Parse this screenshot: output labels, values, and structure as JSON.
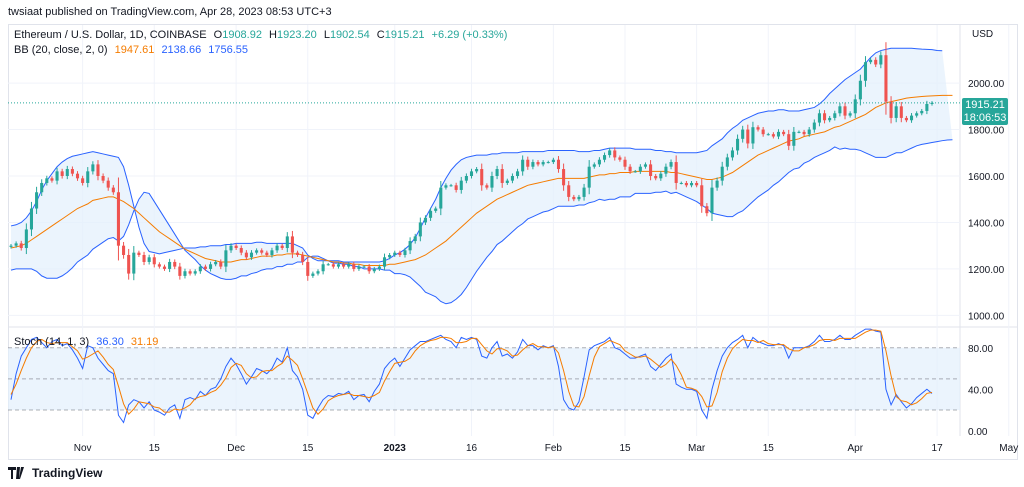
{
  "attribution": "twsiaat published on TradingView.com, Apr 28, 2023 08:53 UTC+3",
  "brand": "TradingView",
  "colors": {
    "up": "#26a69a",
    "down": "#ef5350",
    "bb_basis": "#f57c00",
    "bb_band": "#2962ff",
    "bb_fill": "#e3f0fc",
    "stoch_k": "#2962ff",
    "stoch_d": "#f57c00",
    "grid": "#f0f3fa",
    "text": "#131722"
  },
  "legend": {
    "symbol": "Ethereum / U.S. Dollar, 1D, COINBASE",
    "o_label": "O",
    "o": "1908.92",
    "h_label": "H",
    "h": "1923.20",
    "l_label": "L",
    "l": "1902.54",
    "c_label": "C",
    "c": "1915.21",
    "change": "+6.29 (+0.33%)",
    "bb_label": "BB (20, close, 2, 0)",
    "bb_basis": "1947.61",
    "bb_upper": "2138.66",
    "bb_lower": "1756.55",
    "stoch_label": "Stoch (14, 1, 3)",
    "stoch_k": "36.30",
    "stoch_d": "31.19"
  },
  "price_tag": {
    "price": "1915.21",
    "countdown": "18:06:53"
  },
  "chart_data": [
    {
      "type": "candlestick",
      "title": "Ethereum / U.S. Dollar, 1D, COINBASE",
      "currency_label": "USD",
      "ylim": [
        950,
        2250
      ],
      "y_ticks": [
        "1000.00",
        "1200.00",
        "1400.00",
        "1600.00",
        "1800.00",
        "2000.00"
      ],
      "x_tick_labels": [
        "Nov",
        "15",
        "Dec",
        "15",
        "2023",
        "16",
        "Feb",
        "15",
        "Mar",
        "15",
        "Apr",
        "17",
        "May"
      ],
      "x_tick_dates": [
        "2022-11-01",
        "2022-11-15",
        "2022-12-01",
        "2022-12-15",
        "2023-01-01",
        "2023-01-16",
        "2023-02-01",
        "2023-02-15",
        "2023-03-01",
        "2023-03-15",
        "2023-04-01",
        "2023-04-17",
        "2023-05-01"
      ],
      "start_date": "2022-10-18",
      "closes": [
        1300,
        1310,
        1290,
        1370,
        1460,
        1530,
        1570,
        1590,
        1580,
        1620,
        1600,
        1630,
        1610,
        1590,
        1570,
        1620,
        1650,
        1600,
        1580,
        1550,
        1530,
        1300,
        1260,
        1180,
        1270,
        1260,
        1230,
        1250,
        1220,
        1210,
        1200,
        1230,
        1210,
        1170,
        1190,
        1180,
        1190,
        1210,
        1200,
        1220,
        1230,
        1210,
        1280,
        1300,
        1290,
        1270,
        1250,
        1270,
        1280,
        1270,
        1260,
        1280,
        1300,
        1290,
        1340,
        1270,
        1260,
        1230,
        1170,
        1180,
        1190,
        1220,
        1220,
        1210,
        1220,
        1210,
        1220,
        1200,
        1210,
        1210,
        1190,
        1200,
        1210,
        1250,
        1260,
        1270,
        1260,
        1280,
        1320,
        1340,
        1400,
        1420,
        1450,
        1460,
        1550,
        1560,
        1560,
        1540,
        1580,
        1600,
        1620,
        1630,
        1560,
        1550,
        1600,
        1630,
        1570,
        1580,
        1600,
        1620,
        1670,
        1640,
        1660,
        1650,
        1660,
        1660,
        1670,
        1630,
        1560,
        1510,
        1500,
        1510,
        1550,
        1640,
        1650,
        1670,
        1690,
        1710,
        1680,
        1670,
        1640,
        1620,
        1620,
        1640,
        1650,
        1600,
        1590,
        1610,
        1640,
        1660,
        1570,
        1570,
        1560,
        1570,
        1560,
        1470,
        1440,
        1550,
        1580,
        1640,
        1680,
        1710,
        1760,
        1800,
        1740,
        1810,
        1800,
        1780,
        1780,
        1770,
        1790,
        1780,
        1730,
        1790,
        1790,
        1780,
        1800,
        1830,
        1870,
        1840,
        1850,
        1870,
        1900,
        1860,
        1870,
        1930,
        2010,
        2090,
        2100,
        2080,
        2120,
        1920,
        1850,
        1900,
        1850,
        1840,
        1860,
        1870,
        1880,
        1910,
        1915
      ],
      "bb_upper": [
        1385,
        1390,
        1400,
        1420,
        1450,
        1490,
        1540,
        1580,
        1610,
        1640,
        1660,
        1675,
        1685,
        1690,
        1695,
        1700,
        1705,
        1700,
        1695,
        1690,
        1685,
        1680,
        1640,
        1560,
        1470,
        1380,
        1310,
        1275,
        1270,
        1265,
        1270,
        1275,
        1280,
        1285,
        1290,
        1290,
        1290,
        1295,
        1295,
        1300,
        1300,
        1300,
        1305,
        1305,
        1310,
        1310,
        1310,
        1310,
        1315,
        1315,
        1310,
        1310,
        1310,
        1310,
        1310,
        1310,
        1300,
        1290,
        1260,
        1245,
        1235,
        1235,
        1235,
        1235,
        1235,
        1230,
        1230,
        1230,
        1230,
        1230,
        1230,
        1230,
        1230,
        1235,
        1245,
        1260,
        1270,
        1285,
        1305,
        1335,
        1375,
        1420,
        1460,
        1500,
        1550,
        1590,
        1625,
        1650,
        1670,
        1680,
        1685,
        1690,
        1690,
        1690,
        1695,
        1695,
        1700,
        1700,
        1700,
        1700,
        1705,
        1705,
        1705,
        1705,
        1705,
        1710,
        1710,
        1710,
        1710,
        1710,
        1710,
        1705,
        1705,
        1705,
        1710,
        1710,
        1715,
        1720,
        1720,
        1720,
        1720,
        1720,
        1715,
        1715,
        1715,
        1715,
        1710,
        1710,
        1705,
        1705,
        1700,
        1700,
        1700,
        1700,
        1700,
        1705,
        1710,
        1730,
        1745,
        1760,
        1785,
        1805,
        1820,
        1840,
        1850,
        1860,
        1870,
        1875,
        1880,
        1880,
        1885,
        1885,
        1880,
        1880,
        1880,
        1885,
        1890,
        1895,
        1910,
        1930,
        1955,
        1975,
        1995,
        2015,
        2030,
        2045,
        2060,
        2085,
        2110,
        2130,
        2140,
        2145,
        2150,
        2150,
        2150,
        2150,
        2150,
        2148,
        2146,
        2145,
        2144,
        2140,
        2139
      ],
      "bb_basis": [
        1290,
        1295,
        1300,
        1310,
        1325,
        1340,
        1355,
        1370,
        1385,
        1400,
        1415,
        1430,
        1445,
        1460,
        1470,
        1480,
        1495,
        1500,
        1505,
        1510,
        1510,
        1500,
        1490,
        1475,
        1460,
        1440,
        1420,
        1400,
        1380,
        1360,
        1345,
        1330,
        1315,
        1300,
        1285,
        1275,
        1265,
        1255,
        1245,
        1240,
        1235,
        1230,
        1230,
        1230,
        1235,
        1240,
        1240,
        1245,
        1250,
        1255,
        1255,
        1255,
        1260,
        1260,
        1265,
        1265,
        1265,
        1260,
        1255,
        1250,
        1245,
        1240,
        1235,
        1230,
        1230,
        1225,
        1225,
        1220,
        1220,
        1215,
        1215,
        1215,
        1215,
        1215,
        1220,
        1220,
        1225,
        1230,
        1235,
        1240,
        1250,
        1260,
        1275,
        1290,
        1305,
        1320,
        1340,
        1360,
        1380,
        1400,
        1420,
        1440,
        1455,
        1470,
        1485,
        1500,
        1510,
        1520,
        1530,
        1540,
        1550,
        1560,
        1565,
        1570,
        1575,
        1580,
        1585,
        1590,
        1590,
        1590,
        1590,
        1590,
        1590,
        1595,
        1600,
        1605,
        1605,
        1610,
        1610,
        1615,
        1615,
        1615,
        1620,
        1620,
        1620,
        1620,
        1620,
        1620,
        1620,
        1615,
        1615,
        1610,
        1605,
        1600,
        1595,
        1590,
        1585,
        1585,
        1590,
        1595,
        1605,
        1615,
        1630,
        1645,
        1660,
        1675,
        1690,
        1700,
        1710,
        1720,
        1730,
        1740,
        1750,
        1755,
        1760,
        1770,
        1775,
        1780,
        1785,
        1790,
        1800,
        1810,
        1815,
        1825,
        1835,
        1845,
        1855,
        1865,
        1880,
        1895,
        1905,
        1915,
        1920,
        1925,
        1930,
        1935,
        1938,
        1940,
        1942,
        1944,
        1945,
        1946,
        1947,
        1947,
        1947
      ],
      "bb_lower": [
        1195,
        1200,
        1200,
        1200,
        1200,
        1190,
        1170,
        1160,
        1160,
        1160,
        1170,
        1185,
        1205,
        1230,
        1245,
        1260,
        1285,
        1300,
        1315,
        1330,
        1335,
        1320,
        1340,
        1390,
        1450,
        1500,
        1530,
        1525,
        1490,
        1455,
        1420,
        1385,
        1350,
        1315,
        1280,
        1260,
        1240,
        1215,
        1195,
        1180,
        1170,
        1160,
        1155,
        1155,
        1160,
        1170,
        1170,
        1180,
        1185,
        1195,
        1200,
        1200,
        1210,
        1210,
        1220,
        1220,
        1230,
        1230,
        1250,
        1255,
        1255,
        1245,
        1235,
        1225,
        1225,
        1220,
        1220,
        1210,
        1210,
        1200,
        1200,
        1200,
        1200,
        1195,
        1195,
        1180,
        1180,
        1175,
        1165,
        1145,
        1125,
        1100,
        1090,
        1080,
        1060,
        1050,
        1055,
        1070,
        1090,
        1120,
        1155,
        1190,
        1220,
        1250,
        1275,
        1305,
        1320,
        1340,
        1360,
        1380,
        1395,
        1415,
        1425,
        1435,
        1445,
        1450,
        1460,
        1470,
        1470,
        1470,
        1470,
        1475,
        1475,
        1485,
        1490,
        1500,
        1495,
        1500,
        1500,
        1510,
        1510,
        1510,
        1525,
        1525,
        1525,
        1525,
        1530,
        1530,
        1535,
        1525,
        1530,
        1520,
        1510,
        1500,
        1490,
        1475,
        1460,
        1440,
        1435,
        1430,
        1425,
        1425,
        1440,
        1450,
        1470,
        1490,
        1510,
        1525,
        1540,
        1560,
        1575,
        1595,
        1615,
        1630,
        1635,
        1655,
        1665,
        1680,
        1690,
        1700,
        1710,
        1725,
        1715,
        1720,
        1715,
        1715,
        1710,
        1700,
        1690,
        1680,
        1680,
        1680,
        1690,
        1700,
        1700,
        1710,
        1720,
        1730,
        1736,
        1740,
        1744,
        1748,
        1752,
        1755,
        1756
      ]
    },
    {
      "type": "line",
      "title": "Stoch (14, 1, 3)",
      "ylim": [
        -5,
        100
      ],
      "y_ticks": [
        "0.00",
        "40.00",
        "80.00"
      ],
      "bands": [
        20,
        50,
        80
      ],
      "series": [
        {
          "name": "%K",
          "values": [
            30,
            55,
            72,
            80,
            88,
            90,
            85,
            80,
            86,
            88,
            82,
            84,
            78,
            70,
            60,
            82,
            80,
            70,
            64,
            58,
            55,
            15,
            8,
            25,
            30,
            28,
            22,
            28,
            20,
            18,
            15,
            22,
            25,
            12,
            30,
            32,
            30,
            38,
            34,
            40,
            42,
            50,
            62,
            70,
            64,
            55,
            45,
            52,
            60,
            58,
            55,
            60,
            70,
            66,
            80,
            58,
            52,
            40,
            15,
            12,
            22,
            30,
            34,
            33,
            36,
            35,
            38,
            30,
            34,
            35,
            28,
            38,
            45,
            60,
            66,
            70,
            62,
            70,
            78,
            82,
            86,
            86,
            88,
            90,
            92,
            88,
            86,
            80,
            90,
            88,
            90,
            88,
            72,
            70,
            80,
            86,
            72,
            74,
            70,
            76,
            88,
            82,
            82,
            78,
            82,
            80,
            82,
            62,
            30,
            22,
            20,
            28,
            52,
            78,
            82,
            84,
            86,
            90,
            80,
            78,
            74,
            70,
            70,
            72,
            74,
            62,
            58,
            64,
            70,
            74,
            45,
            42,
            40,
            40,
            38,
            20,
            12,
            40,
            58,
            72,
            80,
            85,
            88,
            92,
            80,
            90,
            86,
            84,
            82,
            82,
            84,
            82,
            70,
            80,
            80,
            80,
            82,
            86,
            92,
            86,
            86,
            88,
            92,
            88,
            88,
            92,
            95,
            98,
            98,
            96,
            95,
            40,
            25,
            35,
            28,
            22,
            26,
            32,
            36,
            40,
            36
          ]
        },
        {
          "name": "%D",
          "values": [
            35,
            45,
            58,
            70,
            80,
            86,
            88,
            85,
            84,
            85,
            85,
            85,
            81,
            77,
            69,
            71,
            74,
            77,
            71,
            64,
            59,
            43,
            26,
            16,
            21,
            28,
            27,
            26,
            23,
            22,
            18,
            18,
            21,
            20,
            22,
            25,
            31,
            33,
            34,
            37,
            39,
            44,
            51,
            61,
            65,
            63,
            55,
            51,
            52,
            57,
            58,
            58,
            62,
            65,
            72,
            68,
            63,
            50,
            36,
            22,
            16,
            21,
            29,
            32,
            34,
            35,
            36,
            34,
            34,
            33,
            32,
            34,
            37,
            48,
            57,
            65,
            66,
            67,
            70,
            77,
            82,
            85,
            87,
            88,
            90,
            90,
            89,
            85,
            85,
            86,
            89,
            89,
            83,
            77,
            74,
            79,
            79,
            77,
            72,
            73,
            78,
            82,
            84,
            81,
            81,
            80,
            81,
            75,
            58,
            38,
            24,
            23,
            33,
            53,
            71,
            81,
            84,
            87,
            85,
            83,
            77,
            74,
            71,
            71,
            72,
            69,
            65,
            61,
            64,
            69,
            63,
            54,
            42,
            41,
            39,
            33,
            23,
            24,
            37,
            57,
            70,
            79,
            84,
            88,
            87,
            87,
            85,
            87,
            84,
            83,
            83,
            83,
            79,
            77,
            77,
            80,
            81,
            83,
            87,
            88,
            88,
            87,
            89,
            89,
            89,
            89,
            92,
            95,
            97,
            97,
            96,
            77,
            53,
            33,
            29,
            28,
            25,
            27,
            31,
            36,
            37
          ]
        }
      ]
    }
  ]
}
